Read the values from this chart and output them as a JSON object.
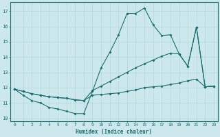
{
  "xlabel": "Humidex (Indice chaleur)",
  "bg_color": "#cce8ec",
  "grid_color": "#b0d8dc",
  "line_color": "#1a6e6e",
  "xlim": [
    -0.5,
    23.5
  ],
  "ylim": [
    9.8,
    17.6
  ],
  "xticks": [
    0,
    1,
    2,
    3,
    4,
    5,
    6,
    7,
    8,
    9,
    10,
    11,
    12,
    13,
    14,
    15,
    16,
    17,
    18,
    19,
    20,
    21,
    22,
    23
  ],
  "yticks": [
    10,
    11,
    12,
    13,
    14,
    15,
    16,
    17
  ],
  "line1_x": [
    0,
    1,
    2,
    3,
    4,
    5,
    6,
    7,
    8,
    9,
    10,
    11,
    12,
    13,
    14,
    15,
    16,
    17,
    18,
    19,
    20,
    21,
    22,
    23
  ],
  "line1_y": [
    11.9,
    11.5,
    11.15,
    11.0,
    10.7,
    10.6,
    10.45,
    10.3,
    10.3,
    11.75,
    13.3,
    14.3,
    15.45,
    16.85,
    16.85,
    17.2,
    16.1,
    15.4,
    15.45,
    14.2,
    13.4,
    15.95,
    12.05,
    12.1
  ],
  "line2_x": [
    0,
    1,
    2,
    3,
    4,
    5,
    6,
    7,
    8,
    9,
    10,
    11,
    12,
    13,
    14,
    15,
    16,
    17,
    18,
    19,
    20,
    21,
    22,
    23
  ],
  "line2_y": [
    11.9,
    11.75,
    11.6,
    11.5,
    11.4,
    11.35,
    11.3,
    11.2,
    11.15,
    11.8,
    12.1,
    12.4,
    12.7,
    13.0,
    13.3,
    13.55,
    13.8,
    14.05,
    14.25,
    14.2,
    13.4,
    15.95,
    12.05,
    12.1
  ],
  "line3_x": [
    0,
    1,
    2,
    3,
    4,
    5,
    6,
    7,
    8,
    9,
    10,
    11,
    12,
    13,
    14,
    15,
    16,
    17,
    18,
    19,
    20,
    21,
    22,
    23
  ],
  "line3_y": [
    11.9,
    11.75,
    11.6,
    11.5,
    11.4,
    11.35,
    11.3,
    11.2,
    11.15,
    11.5,
    11.55,
    11.6,
    11.65,
    11.75,
    11.85,
    12.0,
    12.05,
    12.1,
    12.2,
    12.3,
    12.45,
    12.55,
    12.05,
    12.1
  ]
}
